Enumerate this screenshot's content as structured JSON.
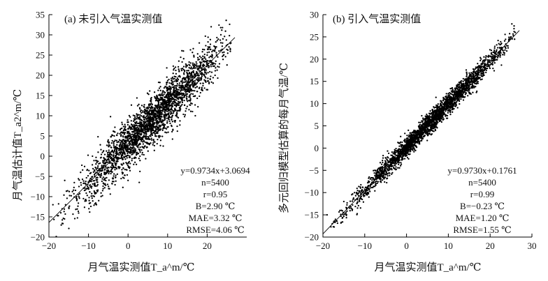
{
  "chart_data": [
    {
      "type": "scatter",
      "title": "(a) 未引入气温实测值",
      "xlabel": "月气温实测值T_a^m/℃",
      "ylabel": "月气温估计值T_a2^m/℃",
      "xlim": [
        -20,
        30
      ],
      "ylim": [
        -20,
        35
      ],
      "xticks": [
        -20,
        -10,
        0,
        10,
        20
      ],
      "yticks": [
        -20,
        -15,
        -10,
        -5,
        0,
        5,
        10,
        15,
        20,
        25,
        30,
        35
      ],
      "grid": false,
      "fit": {
        "slope": 0.9734,
        "intercept": 3.0694,
        "x_range": [
          -20,
          27
        ]
      },
      "stats": [
        "y=0.9734x+3.0694",
        "n=5400",
        "r=0.95",
        "B=2.90 ℃",
        "MAE=3.32 ℃",
        "RMSE=4.06 ℃"
      ],
      "series": [
        {
          "n": 5400,
          "x_range": [
            -19,
            26
          ],
          "noise_sd": 4.06,
          "points": [
            [
              -19,
              -12
            ],
            [
              -17,
              -14
            ],
            [
              -16,
              -6
            ],
            [
              -13,
              -10
            ],
            [
              -12,
              -4
            ],
            [
              -10,
              -8
            ],
            [
              -9,
              0
            ],
            [
              -8,
              -12
            ],
            [
              -6,
              -4
            ],
            [
              -5,
              4
            ],
            [
              -4,
              -3
            ],
            [
              -2,
              2
            ],
            [
              0,
              4
            ],
            [
              0,
              -6
            ],
            [
              2,
              7
            ],
            [
              3,
              0
            ],
            [
              5,
              10
            ],
            [
              6,
              4
            ],
            [
              8,
              14
            ],
            [
              9,
              8
            ],
            [
              10,
              17
            ],
            [
              11,
              9
            ],
            [
              12,
              22
            ],
            [
              13,
              12
            ],
            [
              14,
              26
            ],
            [
              15,
              16
            ],
            [
              16,
              22
            ],
            [
              17,
              10
            ],
            [
              18,
              28
            ],
            [
              19,
              18
            ],
            [
              20,
              25
            ],
            [
              21,
              32
            ],
            [
              22,
              20
            ],
            [
              23,
              26
            ],
            [
              24,
              29
            ],
            [
              26,
              28
            ]
          ]
        }
      ]
    },
    {
      "type": "scatter",
      "title": "(b) 引入气温实测值",
      "xlabel": "月气温实测值T_a^m/℃",
      "ylabel": "多元回归模型估算的每月气温/℃",
      "xlim": [
        -20,
        30
      ],
      "ylim": [
        -20,
        30
      ],
      "xticks": [
        -20,
        -10,
        0,
        10,
        20,
        30
      ],
      "yticks": [
        -20,
        -15,
        -10,
        -5,
        0,
        5,
        10,
        15,
        20,
        25,
        30
      ],
      "grid": false,
      "fit": {
        "slope": 0.973,
        "intercept": 0.1761,
        "x_range": [
          -20,
          27
        ]
      },
      "stats": [
        "y=0.9730x+0.1761",
        "n=5400",
        "r=0.99",
        "B=−0.23 ℃",
        "MAE=1.20 ℃",
        "RMSE=1.55 ℃"
      ],
      "series": [
        {
          "n": 5400,
          "x_range": [
            -19,
            26
          ],
          "noise_sd": 1.55,
          "points": [
            [
              -19,
              -15
            ],
            [
              -17,
              -16
            ],
            [
              -15,
              -12
            ],
            [
              -13,
              -14
            ],
            [
              -11,
              -9
            ],
            [
              -9,
              -11
            ],
            [
              -7,
              -5
            ],
            [
              -5,
              -6
            ],
            [
              -3,
              -1
            ],
            [
              -1,
              -2
            ],
            [
              1,
              3
            ],
            [
              3,
              1
            ],
            [
              5,
              7
            ],
            [
              7,
              5
            ],
            [
              9,
              11
            ],
            [
              11,
              9
            ],
            [
              13,
              15
            ],
            [
              15,
              13
            ],
            [
              17,
              19
            ],
            [
              19,
              17
            ],
            [
              21,
              22
            ],
            [
              23,
              21
            ],
            [
              25,
              25
            ],
            [
              26,
              26
            ]
          ]
        }
      ]
    }
  ]
}
